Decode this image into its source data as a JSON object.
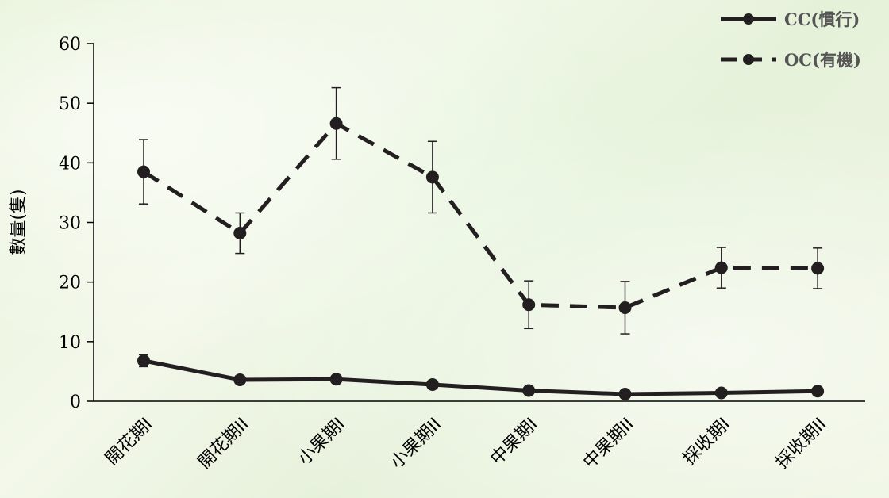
{
  "chart_data": {
    "type": "line",
    "ylabel": "數量(隻)",
    "xlabel": "",
    "ylim": [
      0,
      60
    ],
    "yticks": [
      0,
      10,
      20,
      30,
      40,
      50,
      60
    ],
    "categories": [
      "開花期I",
      "開花期II",
      "小果期I",
      "小果期II",
      "中果期I",
      "中果期II",
      "採收期I",
      "採收期II"
    ],
    "legend_position": "top-right",
    "grid": false,
    "series": [
      {
        "name": "CC(慣行)",
        "line_style": "solid",
        "color": "#231f20",
        "values": [
          6.8,
          3.6,
          3.7,
          2.8,
          1.8,
          1.2,
          1.4,
          1.7
        ],
        "error": [
          1.0,
          0,
          0,
          0,
          0,
          0,
          0,
          0
        ]
      },
      {
        "name": "OC(有機)",
        "line_style": "dashed",
        "color": "#231f20",
        "values": [
          38.5,
          28.2,
          46.6,
          37.6,
          16.2,
          15.7,
          22.4,
          22.3
        ],
        "error": [
          5.4,
          3.4,
          6.0,
          6.0,
          4.0,
          4.4,
          3.4,
          3.4
        ]
      }
    ]
  }
}
